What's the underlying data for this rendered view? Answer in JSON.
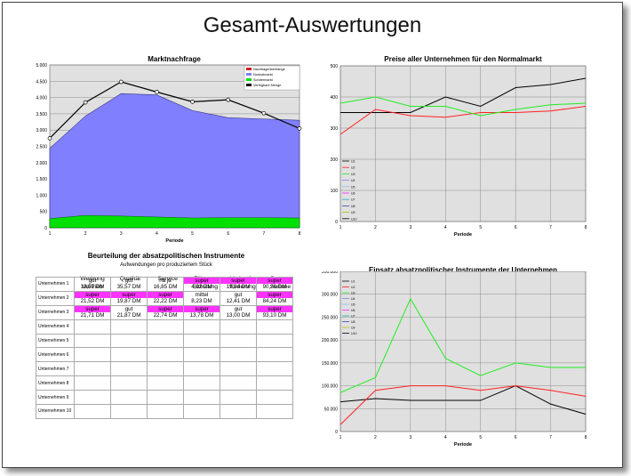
{
  "title": "Gesamt-Auswertungen",
  "colors": {
    "highlight": "#ff33ff",
    "plot_bg": "#e0e0e0",
    "demand_fill": "#8080ff",
    "low_fill": "#00e000"
  },
  "chart_data": [
    {
      "id": "marktnachfrage",
      "type": "area",
      "title": "Marktnachfrage",
      "xlabel": "Periode",
      "ylabel": "",
      "x": [
        1,
        2,
        3,
        4,
        5,
        6,
        7,
        8
      ],
      "ylim": [
        0,
        5000
      ],
      "yticks": [
        0,
        500,
        1000,
        1500,
        2000,
        2500,
        3000,
        3500,
        4000,
        4500,
        5000
      ],
      "ytick_labels": [
        "0",
        "500",
        "1.000",
        "1.500",
        "2.000",
        "2.500",
        "3.000",
        "3.500",
        "4.000",
        "4.500",
        "5.000"
      ],
      "legend": [
        "Nachfrageüberhänge",
        "Normalmarkt",
        "Sondermarkt",
        "Verfügbare Menge"
      ],
      "series": [
        {
          "name": "Sondermarkt",
          "values": [
            280,
            380,
            360,
            330,
            300,
            310,
            310,
            300
          ]
        },
        {
          "name": "Normalmarkt",
          "values": [
            2440,
            3430,
            4120,
            4080,
            3600,
            3380,
            3340,
            3300
          ]
        },
        {
          "name": "Verfügbare Menge",
          "values": [
            2750,
            3850,
            4480,
            4170,
            3870,
            3930,
            3520,
            3050
          ]
        }
      ]
    },
    {
      "id": "preise",
      "type": "line",
      "title": "Preise aller Unternehmen für den Normalmarkt",
      "xlabel": "Periode",
      "x": [
        1,
        2,
        3,
        4,
        5,
        6,
        7,
        8
      ],
      "ylim": [
        0,
        500
      ],
      "yticks": [
        0,
        100,
        200,
        300,
        400,
        500
      ],
      "ytick_labels": [
        "0",
        "100",
        "200",
        "300",
        "400",
        "500"
      ],
      "legend": [
        "U1",
        "U2",
        "U3",
        "U4",
        "U5",
        "U6",
        "U7",
        "U8",
        "U9",
        "U10"
      ],
      "series": [
        {
          "name": "U1",
          "values": [
            350,
            350,
            350,
            400,
            370,
            430,
            440,
            460
          ]
        },
        {
          "name": "U2",
          "values": [
            280,
            360,
            340,
            335,
            350,
            350,
            355,
            370
          ]
        },
        {
          "name": "U3",
          "values": [
            380,
            400,
            370,
            370,
            340,
            360,
            375,
            380
          ]
        }
      ]
    },
    {
      "id": "einsatz",
      "type": "line",
      "title": "Einsatz absatzpolitischer Instrumente der Unternehmen",
      "xlabel": "Periode",
      "x": [
        1,
        2,
        3,
        4,
        5,
        6,
        7,
        8
      ],
      "ylim": [
        0,
        350000
      ],
      "yticks": [
        0,
        50000,
        100000,
        150000,
        200000,
        250000,
        300000,
        350000
      ],
      "ytick_labels": [
        "0",
        "50.000",
        "100.000",
        "150.000",
        "200.000",
        "250.000",
        "300.000",
        "350.000"
      ],
      "legend": [
        "U1",
        "U2",
        "U3",
        "U4",
        "U5",
        "U6",
        "U7",
        "U8",
        "U9",
        "U10"
      ],
      "series": [
        {
          "name": "U1",
          "values": [
            65000,
            72000,
            68000,
            68000,
            68000,
            100000,
            60000,
            38000
          ]
        },
        {
          "name": "U2",
          "values": [
            15000,
            90000,
            100000,
            100000,
            90000,
            100000,
            90000,
            77000
          ]
        },
        {
          "name": "U3",
          "values": [
            85000,
            118000,
            290000,
            160000,
            122000,
            150000,
            140000,
            140000
          ]
        }
      ]
    }
  ],
  "table": {
    "title": "Beurteilung der absatzpolitischen Instrumente",
    "subtitle": "Aufwendungen pro produziertem Stück",
    "headers": [
      {
        "line1": "Werbung",
        "line2": "Vertrieb"
      },
      {
        "line1": "Qualität",
        "line2": ""
      },
      {
        "line1": "Service",
        "line2": ""
      },
      {
        "line1": "Führung",
        "line2": "Schulung"
      },
      {
        "line1": "Verkaufs-",
        "line2": "förderung"
      },
      {
        "line1": "Gesamt",
        "line2": "Summe"
      }
    ],
    "rows": [
      {
        "label": "Unternehmen 1",
        "cells": [
          {
            "rating": "gut",
            "value": "13,57 DM",
            "hl": false
          },
          {
            "rating": "gut",
            "value": "35,57 DM",
            "hl": false
          },
          {
            "rating": "na ja",
            "value": "16,85 DM",
            "hl": false
          },
          {
            "rating": "super",
            "value": "4,92 DM",
            "hl": true
          },
          {
            "rating": "super",
            "value": "19,34 DM",
            "hl": true
          },
          {
            "rating": "super",
            "value": "90,26 DM",
            "hl": true
          }
        ]
      },
      {
        "label": "Unternehmen 2",
        "cells": [
          {
            "rating": "super",
            "value": "21,52 DM",
            "hl": true
          },
          {
            "rating": "super",
            "value": "19,87 DM",
            "hl": true
          },
          {
            "rating": "super",
            "value": "22,22 DM",
            "hl": true
          },
          {
            "rating": "mittel",
            "value": "8,23 DM",
            "hl": false
          },
          {
            "rating": "gut",
            "value": "12,41 DM",
            "hl": false
          },
          {
            "rating": "super",
            "value": "84,24 DM",
            "hl": true
          }
        ]
      },
      {
        "label": "Unternehmen 3",
        "cells": [
          {
            "rating": "super",
            "value": "21,71 DM",
            "hl": true
          },
          {
            "rating": "gut",
            "value": "21,87 DM",
            "hl": false
          },
          {
            "rating": "super",
            "value": "22,74 DM",
            "hl": true
          },
          {
            "rating": "super",
            "value": "13,78 DM",
            "hl": true
          },
          {
            "rating": "gut",
            "value": "13,00 DM",
            "hl": false
          },
          {
            "rating": "super",
            "value": "93,10 DM",
            "hl": true
          }
        ]
      },
      {
        "label": "Unternehmen 4",
        "cells": []
      },
      {
        "label": "Unternehmen 5",
        "cells": []
      },
      {
        "label": "Unternehmen 6",
        "cells": []
      },
      {
        "label": "Unternehmen 7",
        "cells": []
      },
      {
        "label": "Unternehmen 8",
        "cells": []
      },
      {
        "label": "Unternehmen 9",
        "cells": []
      },
      {
        "label": "Unternehmen 10",
        "cells": []
      }
    ]
  }
}
